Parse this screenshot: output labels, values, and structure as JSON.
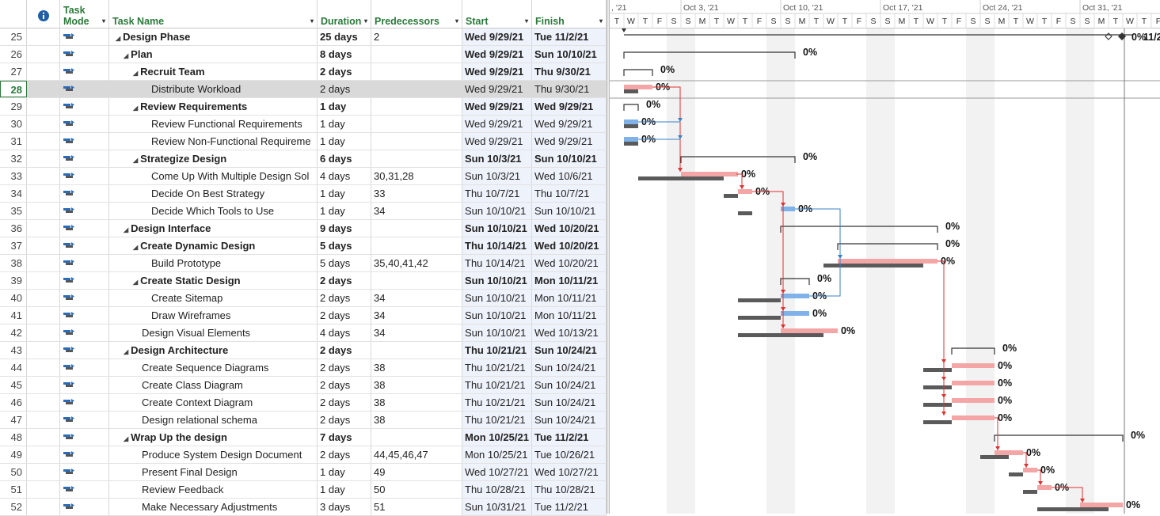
{
  "columns": {
    "mode": "Task Mode",
    "name": "Task Name",
    "duration": "Duration",
    "predecessors": "Predecessors",
    "start": "Start",
    "finish": "Finish"
  },
  "header_arrow": "▾",
  "collapse_glyph": "◢",
  "timeline": {
    "weeks": [
      ", '21",
      "Oct 3, '21",
      "Oct 10, '21",
      "Oct 17, '21",
      "Oct 24, '21",
      "Oct 31, '21"
    ],
    "days": [
      "T",
      "W",
      "T",
      "F",
      "S",
      "S",
      "M",
      "T",
      "W",
      "T",
      "F",
      "S",
      "S",
      "M",
      "T",
      "W",
      "T",
      "F",
      "S",
      "S",
      "M",
      "T",
      "W",
      "T",
      "F",
      "S",
      "S",
      "M",
      "T",
      "W",
      "T",
      "F",
      "S",
      "S",
      "M",
      "T",
      "W",
      "T",
      "F"
    ],
    "top_pct": "0%",
    "top_date": "11/2"
  },
  "colors": {
    "header_text": "#2a7a3a",
    "critical_bar": "#f4a6a6",
    "normal_bar": "#7fb2e8",
    "baseline_bar": "#5a5a5a",
    "critical_link": "#e03030",
    "normal_link": "#3a82c8"
  },
  "tasks": [
    {
      "id": "25",
      "name": "Design Phase",
      "duration": "25 days",
      "pred": "2",
      "start": "Wed 9/29/21",
      "finish": "Tue 11/2/21",
      "level": 0,
      "summary": true,
      "pct": "0%"
    },
    {
      "id": "26",
      "name": "Plan",
      "duration": "8 days",
      "pred": "",
      "start": "Wed 9/29/21",
      "finish": "Sun 10/10/21",
      "level": 1,
      "summary": true,
      "pct": "0%"
    },
    {
      "id": "27",
      "name": "Recruit Team",
      "duration": "2 days",
      "pred": "",
      "start": "Wed 9/29/21",
      "finish": "Thu 9/30/21",
      "level": 2,
      "summary": true,
      "pct": "0%"
    },
    {
      "id": "28",
      "name": "Distribute Workload",
      "duration": "2 days",
      "pred": "",
      "start": "Wed 9/29/21",
      "finish": "Thu 9/30/21",
      "level": 3,
      "summary": false,
      "pct": "0%",
      "selected": true
    },
    {
      "id": "29",
      "name": "Review Requirements",
      "duration": "1 day",
      "pred": "",
      "start": "Wed 9/29/21",
      "finish": "Wed 9/29/21",
      "level": 2,
      "summary": true,
      "pct": "0%"
    },
    {
      "id": "30",
      "name": "Review Functional Requirements",
      "duration": "1 day",
      "pred": "",
      "start": "Wed 9/29/21",
      "finish": "Wed 9/29/21",
      "level": 3,
      "summary": false,
      "pct": "0%"
    },
    {
      "id": "31",
      "name": "Review Non-Functional Requireme",
      "duration": "1 day",
      "pred": "",
      "start": "Wed 9/29/21",
      "finish": "Wed 9/29/21",
      "level": 3,
      "summary": false,
      "pct": "0%"
    },
    {
      "id": "32",
      "name": "Strategize Design",
      "duration": "6 days",
      "pred": "",
      "start": "Sun 10/3/21",
      "finish": "Sun 10/10/21",
      "level": 2,
      "summary": true,
      "pct": "0%"
    },
    {
      "id": "33",
      "name": "Come Up With Multiple Design Sol",
      "duration": "4 days",
      "pred": "30,31,28",
      "start": "Sun 10/3/21",
      "finish": "Wed 10/6/21",
      "level": 3,
      "summary": false,
      "pct": "0%"
    },
    {
      "id": "34",
      "name": "Decide On Best Strategy",
      "duration": "1 day",
      "pred": "33",
      "start": "Thu 10/7/21",
      "finish": "Thu 10/7/21",
      "level": 3,
      "summary": false,
      "pct": "0%"
    },
    {
      "id": "35",
      "name": "Decide Which Tools to Use",
      "duration": "1 day",
      "pred": "34",
      "start": "Sun 10/10/21",
      "finish": "Sun 10/10/21",
      "level": 3,
      "summary": false,
      "pct": "0%"
    },
    {
      "id": "36",
      "name": "Design Interface",
      "duration": "9 days",
      "pred": "",
      "start": "Sun 10/10/21",
      "finish": "Wed 10/20/21",
      "level": 1,
      "summary": true,
      "pct": "0%"
    },
    {
      "id": "37",
      "name": "Create Dynamic Design",
      "duration": "5 days",
      "pred": "",
      "start": "Thu 10/14/21",
      "finish": "Wed 10/20/21",
      "level": 2,
      "summary": true,
      "pct": "0%"
    },
    {
      "id": "38",
      "name": "Build Prototype",
      "duration": "5 days",
      "pred": "35,40,41,42",
      "start": "Thu 10/14/21",
      "finish": "Wed 10/20/21",
      "level": 3,
      "summary": false,
      "pct": "0%"
    },
    {
      "id": "39",
      "name": "Create Static Design",
      "duration": "2 days",
      "pred": "",
      "start": "Sun 10/10/21",
      "finish": "Mon 10/11/21",
      "level": 2,
      "summary": true,
      "pct": "0%"
    },
    {
      "id": "40",
      "name": "Create Sitemap",
      "duration": "2 days",
      "pred": "34",
      "start": "Sun 10/10/21",
      "finish": "Mon 10/11/21",
      "level": 3,
      "summary": false,
      "pct": "0%"
    },
    {
      "id": "41",
      "name": "Draw Wireframes",
      "duration": "2 days",
      "pred": "34",
      "start": "Sun 10/10/21",
      "finish": "Mon 10/11/21",
      "level": 3,
      "summary": false,
      "pct": "0%"
    },
    {
      "id": "42",
      "name": "Design Visual Elements",
      "duration": "4 days",
      "pred": "34",
      "start": "Sun 10/10/21",
      "finish": "Wed 10/13/21",
      "level": 2,
      "summary": false,
      "pct": "0%"
    },
    {
      "id": "43",
      "name": "Design Architecture",
      "duration": "2 days",
      "pred": "",
      "start": "Thu 10/21/21",
      "finish": "Sun 10/24/21",
      "level": 1,
      "summary": true,
      "pct": "0%"
    },
    {
      "id": "44",
      "name": "Create Sequence Diagrams",
      "duration": "2 days",
      "pred": "38",
      "start": "Thu 10/21/21",
      "finish": "Sun 10/24/21",
      "level": 2,
      "summary": false,
      "pct": "0%"
    },
    {
      "id": "45",
      "name": "Create Class Diagram",
      "duration": "2 days",
      "pred": "38",
      "start": "Thu 10/21/21",
      "finish": "Sun 10/24/21",
      "level": 2,
      "summary": false,
      "pct": "0%"
    },
    {
      "id": "46",
      "name": "Create Context Diagram",
      "duration": "2 days",
      "pred": "38",
      "start": "Thu 10/21/21",
      "finish": "Sun 10/24/21",
      "level": 2,
      "summary": false,
      "pct": "0%"
    },
    {
      "id": "47",
      "name": "Design relational schema",
      "duration": "2 days",
      "pred": "38",
      "start": "Thu 10/21/21",
      "finish": "Sun 10/24/21",
      "level": 2,
      "summary": false,
      "pct": "0%"
    },
    {
      "id": "48",
      "name": "Wrap Up the design",
      "duration": "7 days",
      "pred": "",
      "start": "Mon 10/25/21",
      "finish": "Tue 11/2/21",
      "level": 1,
      "summary": true,
      "pct": "0%"
    },
    {
      "id": "49",
      "name": "Produce System Design Document",
      "duration": "2 days",
      "pred": "44,45,46,47",
      "start": "Mon 10/25/21",
      "finish": "Tue 10/26/21",
      "level": 2,
      "summary": false,
      "pct": "0%"
    },
    {
      "id": "50",
      "name": "Present Final Design",
      "duration": "1 day",
      "pred": "49",
      "start": "Wed 10/27/21",
      "finish": "Wed 10/27/21",
      "level": 2,
      "summary": false,
      "pct": "0%"
    },
    {
      "id": "51",
      "name": "Review Feedback",
      "duration": "1 day",
      "pred": "50",
      "start": "Thu 10/28/21",
      "finish": "Thu 10/28/21",
      "level": 2,
      "summary": false,
      "pct": "0%"
    },
    {
      "id": "52",
      "name": "Make Necessary Adjustments",
      "duration": "3 days",
      "pred": "51",
      "start": "Sun 10/31/21",
      "finish": "Tue 11/2/21",
      "level": 2,
      "summary": false,
      "pct": "0%"
    }
  ]
}
